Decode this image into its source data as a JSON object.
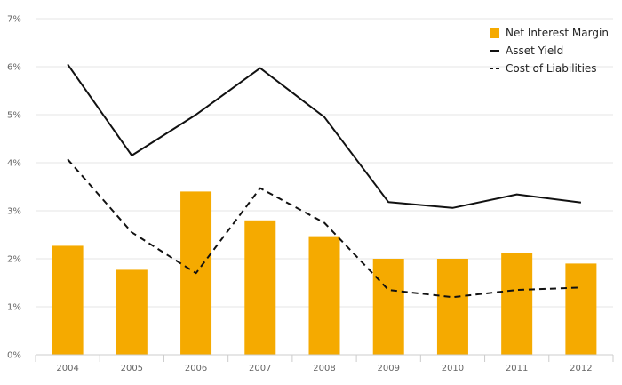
{
  "chart_data": {
    "type": "bar",
    "title": "",
    "xlabel": "",
    "ylabel": "",
    "categories": [
      "2004",
      "2005",
      "2006",
      "2007",
      "2008",
      "2009",
      "2010",
      "2011",
      "2012"
    ],
    "ylim": [
      0,
      7
    ],
    "yticks": [
      "0%",
      "1%",
      "2%",
      "3%",
      "4%",
      "5%",
      "6%",
      "7%"
    ],
    "grid": true,
    "legend_position": "top-right",
    "series": [
      {
        "name": "Net Interest Margin",
        "kind": "bar",
        "color": "#F5AA00",
        "values": [
          2.27,
          1.77,
          3.4,
          2.8,
          2.47,
          2.0,
          2.0,
          2.12,
          1.9
        ]
      },
      {
        "name": "Asset Yield",
        "kind": "line",
        "style": "solid",
        "color": "#111111",
        "values": [
          6.05,
          4.15,
          5.0,
          5.97,
          4.95,
          3.18,
          3.06,
          3.34,
          3.17
        ]
      },
      {
        "name": "Cost of Liabilities",
        "kind": "line",
        "style": "dashed",
        "color": "#111111",
        "values": [
          4.07,
          2.55,
          1.7,
          3.47,
          2.75,
          1.35,
          1.2,
          1.35,
          1.4
        ]
      }
    ]
  }
}
